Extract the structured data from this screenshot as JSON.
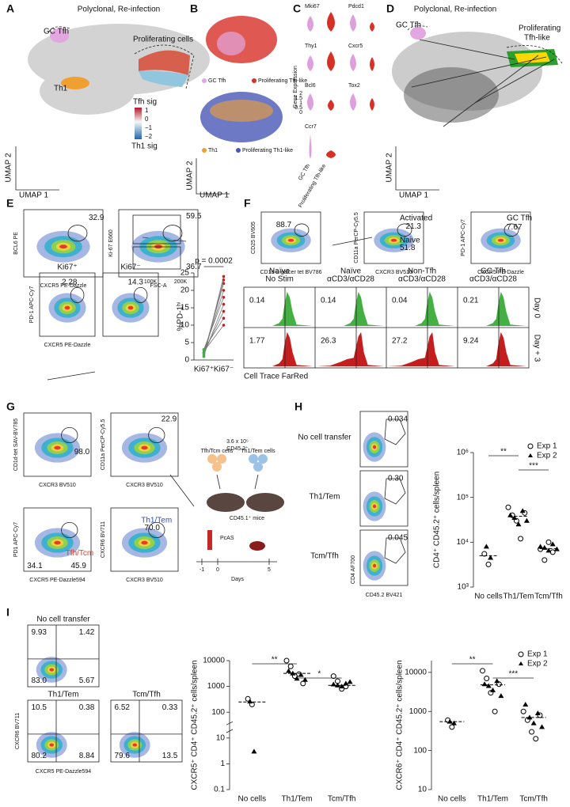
{
  "A": {
    "label": "A",
    "title": "Polyclonal, Re-infection",
    "clusters": [
      "GC Tfh",
      "Proliferating cells",
      "Th1"
    ],
    "scale_title": "Tfh sig",
    "scale_ticks": [
      "1",
      "0",
      "−1",
      "−2"
    ],
    "scale_bottom": "Th1 sig",
    "xlabel": "UMAP 1",
    "ylabel": "UMAP 2"
  },
  "B": {
    "label": "B",
    "legend_top": [
      "GC Tfh",
      "Proliferating Tfh-like"
    ],
    "legend_bottom": [
      "Th1",
      "Proliferating Th1-like"
    ],
    "xlabel": "UMAP 1",
    "ylabel": "UMAP 2"
  },
  "C": {
    "label": "C",
    "ylabel": "Gene Expression",
    "genes": [
      "Mki67",
      "Pdcd1",
      "Thy1",
      "Cxcr5",
      "Bcl6",
      "Tox2",
      "Ccr7"
    ],
    "ticks": [
      "2",
      "1.5",
      "1",
      "0.5",
      "0"
    ],
    "xcats": [
      "GC Tfh",
      "Proliferating Tfh-like"
    ]
  },
  "D": {
    "label": "D",
    "title": "Polyclonal, Re-infection",
    "clusters": [
      "GC Tfh",
      "Proliferating",
      "Tfh-like"
    ],
    "xlabel": "UMAP 1",
    "ylabel": "UMAP 2"
  },
  "E": {
    "label": "E",
    "plots": [
      {
        "xlabel": "CXCR5 PE-Dazzle",
        "ylabel": "BCL6 PE",
        "gates": [
          "32.9"
        ]
      },
      {
        "xlabel": "FSC-A",
        "ylabel": "Ki-67 E660",
        "gates": [
          "59.5",
          "36.7"
        ],
        "xticks": [
          "100K",
          "200K"
        ]
      },
      {
        "title": "Ki67⁺",
        "xlabel": "CXCR5 PE-Dazzle",
        "ylabel": "PD-1 APC-Cy7",
        "gates": [
          "2.28"
        ]
      },
      {
        "title": "Ki67⁻",
        "gates": [
          "14.3"
        ]
      }
    ]
  },
  "F": {
    "label": "F",
    "plots": [
      {
        "xlabel": "CD1d α-galcer tet BV786",
        "ylabel": "CD25 BV605",
        "gates": [
          "88.7"
        ]
      },
      {
        "xlabel": "CXCR3 BV510",
        "ylabel": "CD11a PerCP-Cy5.5",
        "gates": [
          "Activated",
          "21.3",
          "Naive",
          "51.8"
        ]
      },
      {
        "xlabel": "CXCR5 PE-Dazzle",
        "ylabel": "PD-1 APC-Cy7",
        "gates": [
          "GC Tfh",
          "7.67"
        ]
      }
    ],
    "columns": [
      [
        "Naïve",
        "No Stim"
      ],
      [
        "Naïve",
        "αCD3/αCD28"
      ],
      [
        "Non-Tfh",
        "αCD3/αCD28"
      ],
      [
        "GC Tfh",
        "αCD3/αCD28"
      ]
    ],
    "rows": [
      "Day 0",
      "Day + 3"
    ],
    "cells": [
      [
        "0.14",
        "0.14",
        "0.04",
        "0.21"
      ],
      [
        "1.77",
        "26.3",
        "27.2",
        "9.24"
      ]
    ],
    "xlabel": "Cell Trace FarRed"
  },
  "G": {
    "label": "G",
    "plots": [
      {
        "xlabel": "CXCR3 BV510",
        "ylabel": "CD1d-tet SAV-BV785",
        "gates": [
          "98.0"
        ]
      },
      {
        "xlabel": "CXCR3 BV510",
        "ylabel": "CD11a PerCP-Cy5.5",
        "gates": [
          "22.9"
        ]
      },
      {
        "xlabel": "CXCR5 PE-Dazzle594",
        "ylabel": "PD1 APC-Cy7",
        "gates": [
          "34.1",
          "Tfh/Tcm",
          "45.9"
        ]
      },
      {
        "xlabel": "CXCR3 BV510",
        "ylabel": "CXCR6 BV711",
        "gates": [
          "Th1/Tem",
          "70.0"
        ]
      }
    ],
    "schematic": {
      "dose": "3.6 x 10⁵",
      "dose_cells": "CD45.2⁺",
      "groups": [
        "Tfh/Tcm cells",
        "Th1/Tem cells"
      ],
      "mice": "CD45.1⁺ mice",
      "infection": "PcAS",
      "timeline": [
        "-1",
        "0",
        "5"
      ],
      "timeline_label": "Days"
    }
  },
  "H": {
    "label": "H",
    "rows": [
      "No cell transfer",
      "Th1/Tem",
      "Tcm/Tfh"
    ],
    "gates": [
      "0.034",
      "0.30",
      "0.045"
    ],
    "xlabel": "CD45.2 BV421",
    "ylabel": "CD4 AF700"
  },
  "I": {
    "label": "I",
    "plots": [
      {
        "title": "No cell transfer",
        "quadrants": [
          "9.93",
          "1.42",
          "83.0",
          "5.67"
        ]
      },
      {
        "title": "Th1/Tem",
        "quadrants": [
          "10.5",
          "0.38",
          "80.2",
          "8.84"
        ]
      },
      {
        "title": "Tcm/Tfh",
        "quadrants": [
          "6.52",
          "0.33",
          "79.6",
          "13.5"
        ]
      }
    ],
    "xlabel": "CXCR5 PE-Dazzle594",
    "ylabel": "CXCR6 BV711"
  },
  "chart_data": [
    {
      "type": "scatter",
      "log": true,
      "ylabel": "CD4⁺ CD45.2⁺ cells/spleen",
      "categories": [
        "No cells",
        "Th1/Tem",
        "Tcm/Tfh"
      ],
      "series": [
        {
          "name": "Exp 1",
          "marker": "circle-open",
          "color": "#000000",
          "values": [
            [
              5500,
              3200
            ],
            [
              60000,
              40000,
              30000,
              12000,
              45000
            ],
            [
              7000,
              4000,
              10000,
              6000
            ]
          ]
        },
        {
          "name": "Exp 2",
          "marker": "triangle",
          "color": "#000000",
          "values": [
            [
              8000,
              4500
            ],
            [
              40000,
              35000,
              25000,
              50000,
              30000
            ],
            [
              8000,
              7500,
              6500,
              9000,
              7000
            ]
          ]
        }
      ],
      "means": [
        5000,
        38000,
        7200
      ],
      "ylim": [
        1000,
        1000000
      ],
      "yticks": [
        {
          "value": 1000,
          "label": "10³"
        },
        {
          "value": 10000,
          "label": "10⁴"
        },
        {
          "value": 100000,
          "label": "10⁵"
        },
        {
          "value": 1000000,
          "label": "10⁶"
        }
      ],
      "significance": [
        "**",
        "***"
      ],
      "legend": "top-right"
    },
    {
      "type": "scatter",
      "log": true,
      "ylabel": "CXCR5⁺ CD4⁺ CD45.2⁺ cells/spleen",
      "categories": [
        "No cells",
        "Th1/Tem",
        "Tcm/Tfh"
      ],
      "series": [
        {
          "name": "Exp 1",
          "marker": "circle-open",
          "color": "#000000",
          "values": [
            [
              330,
              200
            ],
            [
              10000,
              6000,
              2500,
              3000,
              1300
            ],
            [
              2500,
              1600,
              800,
              1000
            ]
          ]
        },
        {
          "name": "Exp 2",
          "marker": "triangle",
          "color": "#000000",
          "values": [
            [
              260,
              3
            ],
            [
              4000,
              3200,
              2000,
              2800,
              1800
            ],
            [
              1200,
              1100,
              1000,
              1300,
              1500
            ]
          ]
        }
      ],
      "means": [
        250,
        3200,
        1100
      ],
      "ylim": [
        0.1,
        10000
      ],
      "yticks": [
        0.1,
        1,
        10,
        100,
        1000,
        10000
      ],
      "significance": [
        "**",
        "*"
      ]
    },
    {
      "type": "scatter",
      "log": true,
      "ylabel": "CXCR6⁺ CD4⁺ CD45.2⁺ cells/spleen",
      "categories": [
        "No cells",
        "Th1/Tem",
        "Tcm/Tfh"
      ],
      "series": [
        {
          "name": "Exp 1",
          "marker": "circle-open",
          "color": "#000000",
          "values": [
            [
              600,
              400
            ],
            [
              11000,
              7000,
              3000,
              1000,
              5000
            ],
            [
              1000,
              600,
              300,
              200,
              800
            ]
          ]
        },
        {
          "name": "Exp 2",
          "marker": "triangle",
          "color": "#000000",
          "values": [
            [
              550,
              500
            ],
            [
              5000,
              4500,
              3500,
              6000,
              2500
            ],
            [
              1500,
              700,
              500,
              900,
              400
            ]
          ]
        }
      ],
      "means": [
        550,
        4800,
        700
      ],
      "ylim": [
        10,
        20000
      ],
      "yticks": [
        10,
        100,
        1000,
        10000
      ],
      "significance": [
        "**",
        "***"
      ],
      "legend": "top-right"
    },
    {
      "type": "line",
      "ylabel": "%PD-1ʰⁱ",
      "annotation": "p = 0.0002",
      "categories": [
        "Ki67⁺",
        "Ki67⁻"
      ],
      "color": "#777777",
      "series": [
        {
          "values": [
            1,
            24
          ]
        },
        {
          "values": [
            2,
            22
          ]
        },
        {
          "values": [
            2,
            20
          ]
        },
        {
          "values": [
            3,
            18
          ]
        },
        {
          "values": [
            1.5,
            16
          ]
        },
        {
          "values": [
            2,
            14
          ]
        },
        {
          "values": [
            3,
            12
          ]
        },
        {
          "values": [
            2.5,
            10
          ]
        },
        {
          "values": [
            1,
            23
          ]
        }
      ],
      "ylim": [
        0,
        25
      ],
      "yticks": [
        0,
        5,
        10,
        15,
        20,
        25
      ]
    }
  ]
}
